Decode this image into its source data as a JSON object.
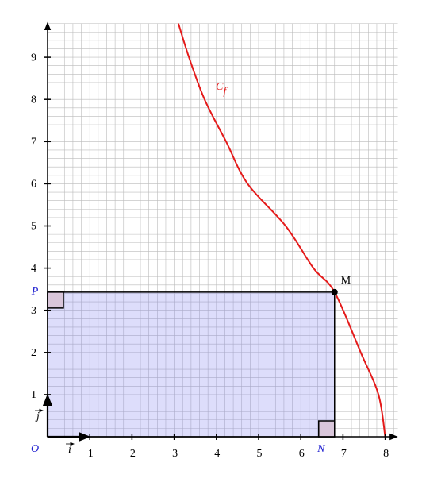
{
  "chart_data": {
    "type": "function-plot",
    "xlim": [
      0,
      8.3
    ],
    "ylim": [
      0,
      9.8
    ],
    "xticks": [
      1,
      2,
      3,
      4,
      5,
      6,
      7,
      8
    ],
    "yticks": [
      1,
      2,
      3,
      4,
      5,
      6,
      7,
      8,
      9
    ],
    "grid": true,
    "grid_step": 0.2,
    "curve_label": {
      "main": "C",
      "sub": "f"
    },
    "series": [
      {
        "color": "#e41a1a",
        "x": [
          3.1,
          3.35,
          3.72,
          4.23,
          4.74,
          5.64,
          6.3,
          6.8,
          7.42,
          7.84,
          8.0
        ],
        "values": [
          9.8,
          9,
          8,
          7,
          6,
          5,
          4,
          3.43,
          2,
          1,
          0
        ]
      }
    ],
    "point": {
      "name": "M",
      "x": 6.8,
      "y": 3.43
    },
    "labels": {
      "origin": "O",
      "p": "P",
      "n": "N"
    },
    "unit_vectors": {
      "x": "i",
      "y": "j"
    }
  }
}
